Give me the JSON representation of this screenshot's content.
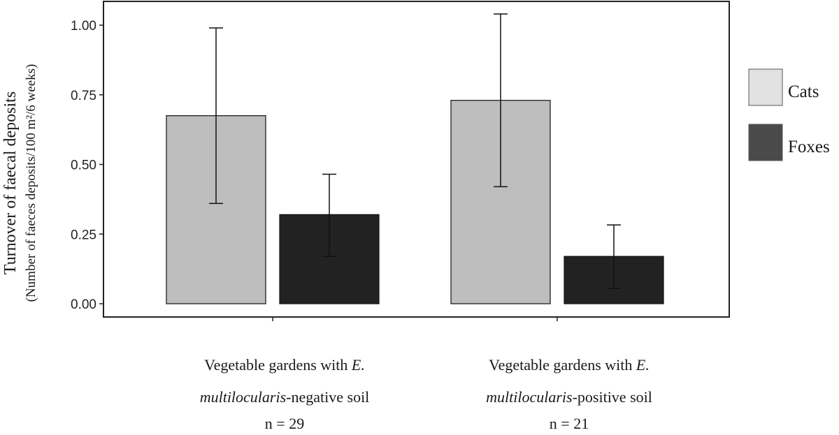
{
  "chart_data": {
    "type": "bar",
    "categories": [
      {
        "line1": "Vegetable gardens with ",
        "line1_italic": "E.",
        "line2_italic": "multilocularis",
        "line2": "-negative soil",
        "line3": "n = 29"
      },
      {
        "line1": "Vegetable gardens with ",
        "line1_italic": "E.",
        "line2_italic": "multilocularis",
        "line2": "-positive soil",
        "line3": "n = 21"
      }
    ],
    "series": [
      {
        "name": "Cats",
        "color": "#bfbebe",
        "legend_color": "#e1e1e1",
        "values": [
          0.675,
          0.73
        ],
        "err_low": [
          0.36,
          0.42
        ],
        "err_high": [
          0.99,
          1.04
        ]
      },
      {
        "name": "Foxes",
        "color": "#222222",
        "legend_color": "#4a4a4a",
        "values": [
          0.32,
          0.17
        ],
        "err_low": [
          0.17,
          0.055
        ],
        "err_high": [
          0.465,
          0.283
        ]
      }
    ],
    "ylabel": "Turnover of faecal deposits",
    "ylabel_sub": "(Number of faeces deposits/100 m²/6 weeks)",
    "ylim": [
      0,
      1.05
    ],
    "yticks": [
      "0.00",
      "0.25",
      "0.50",
      "0.75",
      "1.00"
    ],
    "ytick_values": [
      0,
      0.25,
      0.5,
      0.75,
      1.0
    ],
    "grid": false,
    "legend_position": "right"
  }
}
